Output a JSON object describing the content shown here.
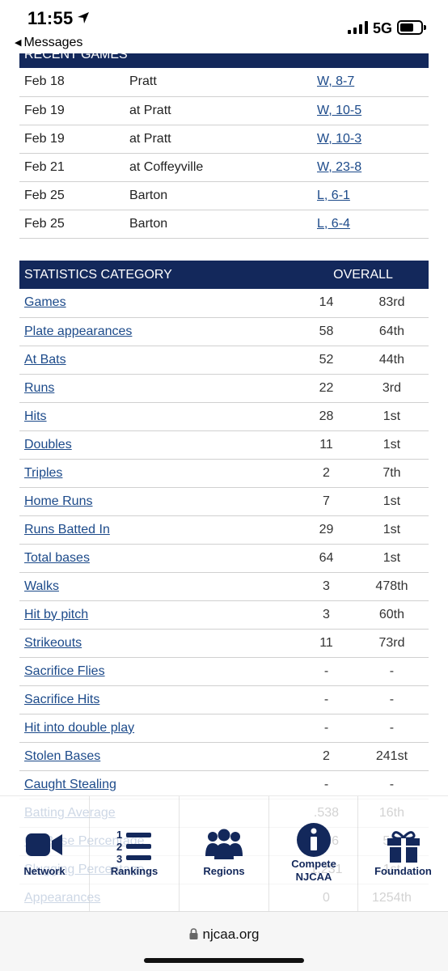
{
  "status_bar": {
    "time": "11:55",
    "back_label": "Messages",
    "network": "5G"
  },
  "recent_games": {
    "header": "RECENT GAMES",
    "rows": [
      {
        "date": "Feb 18",
        "opponent": "Pratt",
        "result": "W, 8-7"
      },
      {
        "date": "Feb 19",
        "opponent": "at Pratt",
        "result": "W, 10-5"
      },
      {
        "date": "Feb 19",
        "opponent": "at Pratt",
        "result": "W, 10-3"
      },
      {
        "date": "Feb 21",
        "opponent": "at Coffeyville",
        "result": "W, 23-8"
      },
      {
        "date": "Feb 25",
        "opponent": "Barton",
        "result": "L, 6-1"
      },
      {
        "date": "Feb 25",
        "opponent": "Barton",
        "result": "L, 6-4"
      }
    ]
  },
  "stats": {
    "header_category": "STATISTICS CATEGORY",
    "header_overall": "OVERALL",
    "rows": [
      {
        "category": "Games",
        "value": "14",
        "rank": "83rd"
      },
      {
        "category": "Plate appearances",
        "value": "58",
        "rank": "64th"
      },
      {
        "category": "At Bats",
        "value": "52",
        "rank": "44th"
      },
      {
        "category": "Runs",
        "value": "22",
        "rank": "3rd"
      },
      {
        "category": "Hits",
        "value": "28",
        "rank": "1st"
      },
      {
        "category": "Doubles",
        "value": "11",
        "rank": "1st"
      },
      {
        "category": "Triples",
        "value": "2",
        "rank": "7th"
      },
      {
        "category": "Home Runs",
        "value": "7",
        "rank": "1st"
      },
      {
        "category": "Runs Batted In",
        "value": "29",
        "rank": "1st"
      },
      {
        "category": "Total bases",
        "value": "64",
        "rank": "1st"
      },
      {
        "category": "Walks",
        "value": "3",
        "rank": "478th"
      },
      {
        "category": "Hit by pitch",
        "value": "3",
        "rank": "60th"
      },
      {
        "category": "Strikeouts",
        "value": "11",
        "rank": "73rd"
      },
      {
        "category": "Sacrifice Flies",
        "value": "-",
        "rank": "-"
      },
      {
        "category": "Sacrifice Hits",
        "value": "-",
        "rank": "-"
      },
      {
        "category": "Hit into double play",
        "value": "-",
        "rank": "-"
      },
      {
        "category": "Stolen Bases",
        "value": "2",
        "rank": "241st"
      },
      {
        "category": "Caught Stealing",
        "value": "-",
        "rank": "-"
      },
      {
        "category": "Batting Average",
        "value": ".538",
        "rank": "16th"
      },
      {
        "category": "On Base Percentage",
        "value": ".586",
        "rank": "5th"
      },
      {
        "category": "Slugging Percentage",
        "value": "1.231",
        "rank": "1st"
      },
      {
        "category": "Appearances",
        "value": "0",
        "rank": "1254th"
      }
    ]
  },
  "bottom_nav": {
    "items": [
      {
        "label": "Network",
        "icon": "video-camera-icon"
      },
      {
        "label": "Rankings",
        "icon": "numbered-list-icon"
      },
      {
        "label": "Regions",
        "icon": "people-group-icon"
      },
      {
        "label": "Compete NJCAA",
        "icon": "info-icon"
      },
      {
        "label": "Foundation",
        "icon": "gift-icon"
      }
    ]
  },
  "browser": {
    "url": "njcaa.org"
  },
  "colors": {
    "navy": "#13285b",
    "link": "#1c4a8a"
  }
}
